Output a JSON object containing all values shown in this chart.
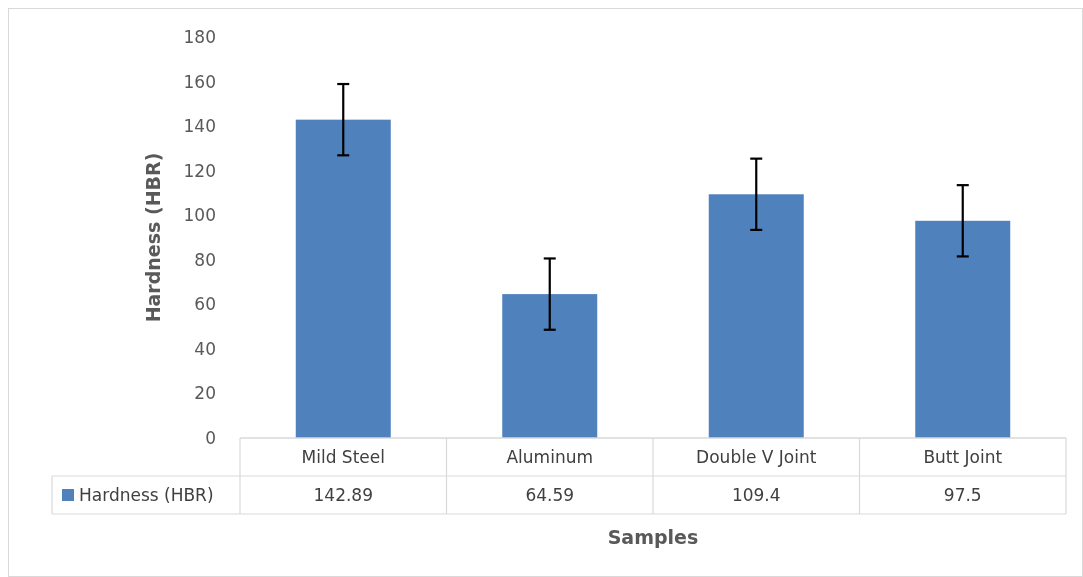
{
  "chart_data": {
    "type": "bar",
    "xlabel": "Samples",
    "ylabel": "Hardness (HBR)",
    "categories": [
      "Mild Steel",
      "Aluminum",
      "Double V Joint",
      "Butt Joint"
    ],
    "series": [
      {
        "name": "Hardness (HBR)",
        "color": "#4f81bd",
        "values": [
          142.89,
          64.59,
          109.4,
          97.5
        ],
        "errors": [
          16,
          16,
          16,
          16
        ]
      }
    ],
    "ylim": [
      0,
      180
    ],
    "yticks": [
      0,
      20,
      40,
      60,
      80,
      100,
      120,
      140,
      160,
      180
    ],
    "grid": false,
    "legend": "bottom",
    "data_labels": true
  }
}
